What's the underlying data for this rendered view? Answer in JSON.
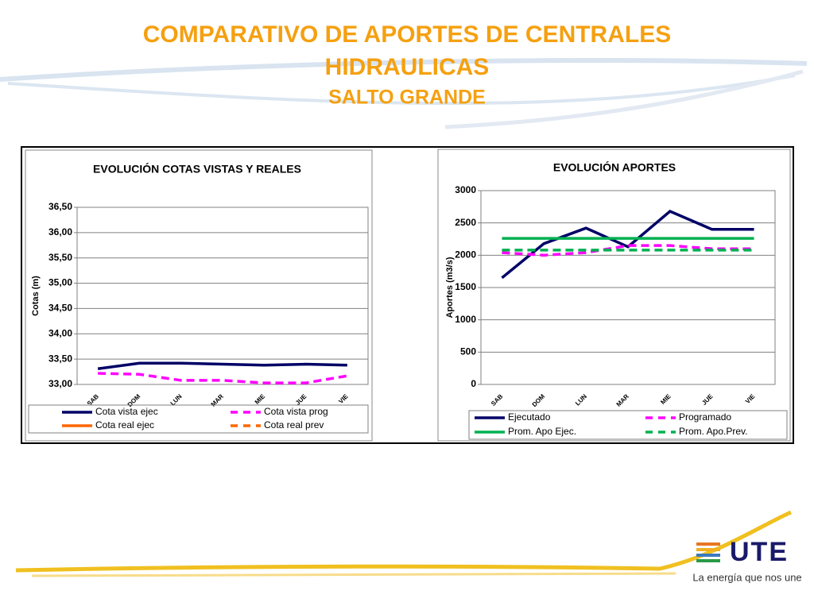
{
  "slide": {
    "title_lines": [
      "COMPARATIVO DE APORTES DE CENTRALES",
      "HIDRAULICAS"
    ],
    "subtitle": "SALTO GRANDE",
    "logo": "UTE",
    "tagline": "La energía que nos une"
  },
  "chart_data": [
    {
      "type": "line",
      "title": "EVOLUCIÓN  COTAS VISTAS Y REALES",
      "y_label": "Cotas (m)",
      "categories": [
        "SAB",
        "DOM",
        "LUN",
        "MAR",
        "MIE",
        "JUE",
        "VIE"
      ],
      "ylim": [
        33,
        36.5
      ],
      "yticks": [
        {
          "value": 33,
          "label": "33,00"
        },
        {
          "value": 33.5,
          "label": "33,50"
        },
        {
          "value": 34,
          "label": "34,00"
        },
        {
          "value": 34.5,
          "label": "34,50"
        },
        {
          "value": 35,
          "label": "35,00"
        },
        {
          "value": 35.5,
          "label": "35,50"
        },
        {
          "value": 36,
          "label": "36,00"
        },
        {
          "value": 36.5,
          "label": "36,50"
        }
      ],
      "grid": true,
      "series": [
        {
          "name": "Cota vista ejec",
          "color": "#000066",
          "style": "solid",
          "values": [
            33.31,
            33.42,
            33.42,
            33.4,
            33.38,
            33.4,
            33.38
          ]
        },
        {
          "name": "Cota vista prog",
          "color": "#ff00ff",
          "style": "dashed",
          "values": [
            33.22,
            33.2,
            33.08,
            33.08,
            33.03,
            33.03,
            33.17
          ]
        },
        {
          "name": "Cota real ejec",
          "color": "#ff6600",
          "style": "solid",
          "values": [
            null,
            null,
            null,
            null,
            null,
            null,
            null
          ]
        },
        {
          "name": "Cota real prev",
          "color": "#ff6600",
          "style": "dashed",
          "values": [
            null,
            null,
            null,
            null,
            null,
            null,
            null
          ]
        }
      ]
    },
    {
      "type": "line",
      "title": "EVOLUCIÓN  APORTES",
      "y_label": "Aportes (m3/s)",
      "categories": [
        "SAB",
        "DOM",
        "LUN",
        "MAR",
        "MIE",
        "JUE",
        "VIE"
      ],
      "ylim": [
        0,
        3000
      ],
      "yticks": [
        0,
        500,
        1000,
        1500,
        2000,
        2500,
        3000
      ],
      "grid": true,
      "series": [
        {
          "name": "Ejecutado",
          "color": "#000066",
          "style": "solid",
          "values": [
            1650,
            2180,
            2420,
            2130,
            2680,
            2400,
            2400
          ]
        },
        {
          "name": "Programado",
          "color": "#ff00ff",
          "style": "dashed",
          "values": [
            2040,
            2000,
            2040,
            2150,
            2150,
            2100,
            2100
          ]
        },
        {
          "name": "Prom. Apo Ejec.",
          "color": "#00b050",
          "style": "solid",
          "values": [
            2260,
            2260,
            2260,
            2260,
            2260,
            2260,
            2260
          ]
        },
        {
          "name": "Prom. Apo.Prev.",
          "color": "#00b050",
          "style": "dashed",
          "values": [
            2080,
            2080,
            2080,
            2080,
            2080,
            2080,
            2080
          ]
        }
      ]
    }
  ]
}
